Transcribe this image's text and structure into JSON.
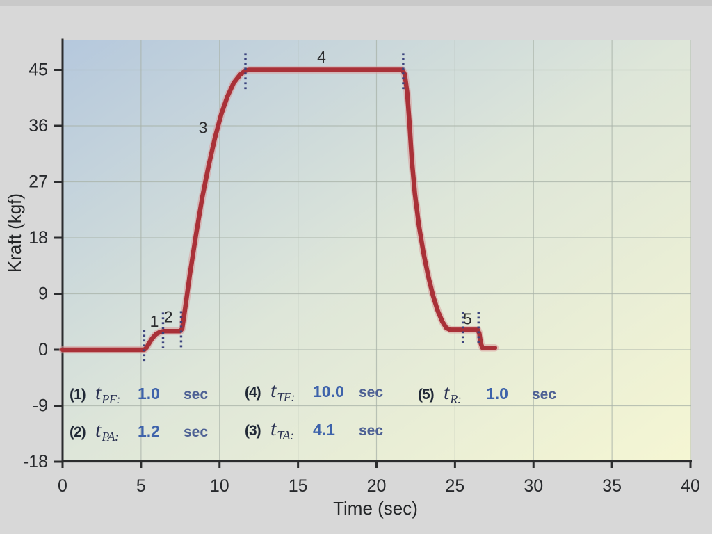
{
  "chart_data": {
    "type": "line",
    "xlabel": "Time (sec)",
    "ylabel": "Kraft (kgf)",
    "xlim": [
      0,
      40
    ],
    "ylim": [
      -18,
      49.5
    ],
    "x_ticks": [
      0,
      5,
      10,
      15,
      20,
      25,
      30,
      35,
      40
    ],
    "y_ticks": [
      -18,
      -9,
      0,
      9,
      18,
      27,
      36,
      45
    ],
    "grid": true,
    "legend": "none",
    "colors": {
      "curve": "#a93138",
      "curve_halo": "#d99a9b",
      "marker_dots": "#3c447e",
      "plot_bg_topleft": "#b5c8dd",
      "plot_bg_mid": "#dee6d9",
      "plot_bg_bottomright": "#f5f6d3",
      "outer_bg": "#d8d8d8",
      "value_blue": "#3e63ab",
      "unit_blue": "#4d6094"
    },
    "series": [
      {
        "name": "force-profile",
        "points": [
          [
            0,
            0
          ],
          [
            5.2,
            0
          ],
          [
            5.35,
            0.35
          ],
          [
            5.5,
            1.0
          ],
          [
            5.7,
            1.8
          ],
          [
            5.95,
            2.5
          ],
          [
            6.2,
            2.85
          ],
          [
            6.45,
            3.0
          ],
          [
            7.5,
            3.0
          ],
          [
            7.62,
            3.4
          ],
          [
            7.8,
            6.5
          ],
          [
            8.1,
            12.0
          ],
          [
            8.5,
            18.5
          ],
          [
            8.9,
            24.5
          ],
          [
            9.3,
            29.5
          ],
          [
            9.7,
            34.0
          ],
          [
            10.1,
            37.8
          ],
          [
            10.5,
            40.7
          ],
          [
            10.9,
            42.9
          ],
          [
            11.3,
            44.2
          ],
          [
            11.65,
            44.9
          ],
          [
            11.9,
            45.0
          ],
          [
            21.65,
            45.0
          ],
          [
            21.8,
            44.3
          ],
          [
            21.95,
            41.5
          ],
          [
            22.1,
            36.5
          ],
          [
            22.25,
            30.5
          ],
          [
            22.45,
            25.0
          ],
          [
            22.7,
            20.0
          ],
          [
            23.0,
            15.5
          ],
          [
            23.3,
            11.8
          ],
          [
            23.6,
            8.7
          ],
          [
            23.9,
            6.3
          ],
          [
            24.2,
            4.5
          ],
          [
            24.45,
            3.5
          ],
          [
            24.7,
            3.2
          ],
          [
            26.45,
            3.2
          ],
          [
            26.55,
            2.6
          ],
          [
            26.65,
            1.0
          ],
          [
            26.75,
            0.3
          ],
          [
            27.55,
            0.3
          ]
        ]
      }
    ],
    "markers": [
      {
        "x": 5.2,
        "y1": -2.3,
        "y2": 3.2
      },
      {
        "x": 6.4,
        "y1": 0.3,
        "y2": 6.0
      },
      {
        "x": 7.55,
        "y1": 0.3,
        "y2": 6.2
      },
      {
        "x": 11.65,
        "y1": 41.8,
        "y2": 47.7
      },
      {
        "x": 21.7,
        "y1": 41.8,
        "y2": 47.7
      },
      {
        "x": 25.5,
        "y1": 0.6,
        "y2": 6.1
      },
      {
        "x": 26.5,
        "y1": 0.6,
        "y2": 6.1
      }
    ],
    "phase_labels": [
      {
        "text": "1",
        "x": 5.85,
        "y": 3.7
      },
      {
        "text": "2",
        "x": 6.74,
        "y": 4.4
      },
      {
        "text": "3",
        "x": 8.95,
        "y": 34.8
      },
      {
        "text": "4",
        "x": 16.5,
        "y": 46.2
      },
      {
        "text": "5",
        "x": 25.8,
        "y": 4.1
      }
    ],
    "parameters": [
      {
        "index": "(1)",
        "symbol": "t",
        "subscript": "PF:",
        "value": "1.0",
        "unit": "sec"
      },
      {
        "index": "(2)",
        "symbol": "t",
        "subscript": "PA:",
        "value": "1.2",
        "unit": "sec"
      },
      {
        "index": "(3)",
        "symbol": "t",
        "subscript": "TA:",
        "value": "4.1",
        "unit": "sec"
      },
      {
        "index": "(4)",
        "symbol": "t",
        "subscript": "TF:",
        "value": "10.0",
        "unit": "sec"
      },
      {
        "index": "(5)",
        "symbol": "t",
        "subscript": "R:",
        "value": "1.0",
        "unit": "sec"
      }
    ]
  }
}
